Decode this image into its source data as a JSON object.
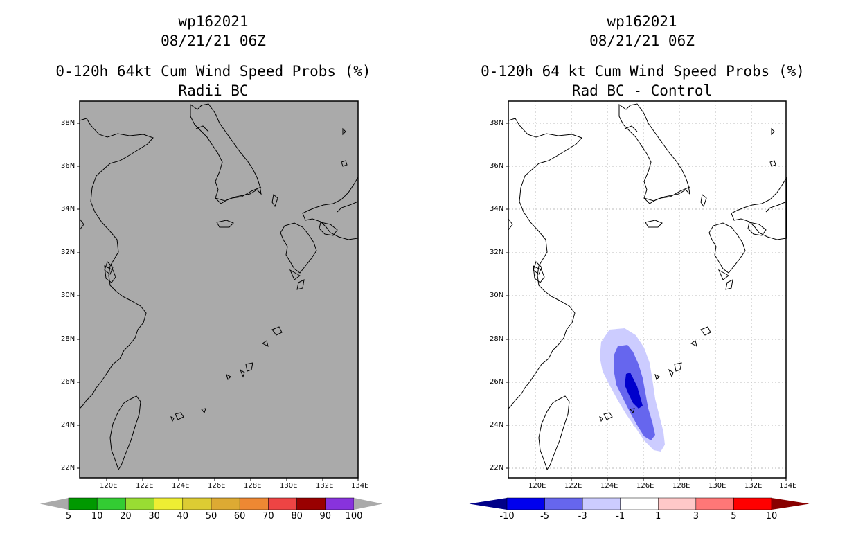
{
  "left": {
    "title_storm": "wp162021",
    "title_time": "08/21/21 06Z",
    "title_product": "0-120h 64kt Cum Wind Speed Probs (%)",
    "title_sub": "Radii BC",
    "fill_color": "#aaaaaa"
  },
  "right": {
    "title_storm": "wp162021",
    "title_time": "08/21/21 06Z",
    "title_product": "0-120h 64 kt Cum Wind Speed Probs (%)",
    "title_sub": "Rad BC - Control"
  },
  "colors": {
    "land_outline": "#000000",
    "grid": "#bbbbbb"
  },
  "chart_data": [
    {
      "type": "heatmap",
      "title": "0-120h 64kt Cum Wind Speed Probs (%) Radii BC",
      "x_ticks": [
        "120E",
        "122E",
        "124E",
        "126E",
        "128E",
        "130E",
        "132E",
        "134E"
      ],
      "y_ticks": [
        "38N",
        "36N",
        "34N",
        "32N",
        "30N",
        "28N",
        "26N",
        "24N",
        "22N"
      ],
      "xlim": [
        118.5,
        134
      ],
      "ylim": [
        21.5,
        39
      ],
      "field": "uniform below 5%",
      "colorbar": {
        "labels": [
          "5",
          "10",
          "20",
          "30",
          "40",
          "50",
          "60",
          "70",
          "80",
          "90",
          "100"
        ],
        "colors": [
          "#009900",
          "#33cc33",
          "#99dd33",
          "#eeee33",
          "#ddcc33",
          "#ddaa33",
          "#ee8833",
          "#ee4444",
          "#990000",
          "#8833dd"
        ],
        "under": "#aaaaaa",
        "over": "#aaaaaa"
      }
    },
    {
      "type": "heatmap",
      "title": "0-120h 64 kt Cum Wind Speed Probs (%) Rad BC - Control",
      "x_ticks": [
        "120E",
        "122E",
        "124E",
        "126E",
        "128E",
        "130E",
        "132E",
        "134E"
      ],
      "y_ticks": [
        "38N",
        "36N",
        "34N",
        "32N",
        "30N",
        "28N",
        "26N",
        "24N",
        "22N"
      ],
      "xlim": [
        118.5,
        134
      ],
      "ylim": [
        21.5,
        39
      ],
      "gridlines": true,
      "contours": [
        {
          "level": "-1 to -3",
          "color": "#ccccff"
        },
        {
          "level": "-3 to -5",
          "color": "#6666ee"
        },
        {
          "level": "-5 to -10",
          "color": "#0000cc"
        }
      ],
      "colorbar": {
        "labels": [
          "-10",
          "-5",
          "-3",
          "-1",
          "1",
          "3",
          "5",
          "10"
        ],
        "colors": [
          "#0000ee",
          "#6666ee",
          "#ccccff",
          "#ffffff",
          "#ffc8c8",
          "#ff7777",
          "#ff0000"
        ],
        "under": "#000088",
        "over": "#880000"
      }
    }
  ]
}
